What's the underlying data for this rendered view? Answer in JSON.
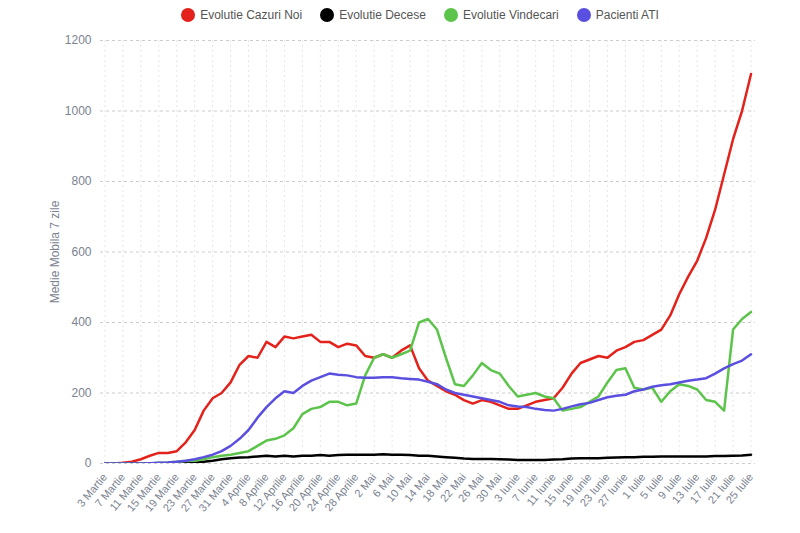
{
  "chart_data": {
    "type": "line",
    "y_label": "Medie Mobila 7 zile",
    "legend": "top",
    "grid": true,
    "ylim": [
      0,
      1200
    ],
    "yticks": [
      0,
      200,
      400,
      600,
      800,
      1000,
      1200
    ],
    "x": [
      "3 Martie",
      null,
      "7 Martie",
      null,
      "11 Martie",
      null,
      "15 Martie",
      null,
      "19 Martie",
      null,
      "23 Martie",
      null,
      "27 Martie",
      null,
      "31 Martie",
      null,
      "4 Aprilie",
      null,
      "8 Aprilie",
      null,
      "12 Aprilie",
      null,
      "16 Aprilie",
      null,
      "20 Aprilie",
      null,
      "24 Aprilie",
      null,
      "28 Aprilie",
      null,
      "2 Mai",
      null,
      "6 Mai",
      null,
      "10 Mai",
      null,
      "14 Mai",
      null,
      "18 Mai",
      null,
      "22 Mai",
      null,
      "26 Mai",
      null,
      "30 Mai",
      null,
      "3 Iunie",
      null,
      "7 Iunie",
      null,
      "11 Iunie",
      null,
      "15 Iunie",
      null,
      "19 Iunie",
      null,
      "23 Iunie",
      null,
      "27 Iunie",
      null,
      "1 Iulie",
      null,
      "5 Iulie",
      null,
      "9 Iulie",
      null,
      "13 Iulie",
      null,
      "17 Iulie",
      null,
      "21 Iulie",
      null,
      "25 Iulie"
    ],
    "series": [
      {
        "name": "Evolutie Cazuri Noi",
        "color": "#e3221c",
        "values": [
          0,
          0,
          2,
          5,
          12,
          22,
          30,
          30,
          35,
          60,
          95,
          150,
          185,
          200,
          230,
          280,
          305,
          300,
          345,
          330,
          360,
          355,
          360,
          365,
          345,
          345,
          330,
          340,
          335,
          305,
          300,
          310,
          300,
          320,
          335,
          270,
          235,
          220,
          205,
          195,
          180,
          170,
          180,
          175,
          165,
          155,
          155,
          165,
          175,
          180,
          185,
          215,
          255,
          285,
          295,
          305,
          300,
          320,
          330,
          345,
          350,
          365,
          380,
          420,
          480,
          530,
          575,
          640,
          720,
          820,
          920,
          1000,
          1105
        ]
      },
      {
        "name": "Evolutie Decese",
        "color": "#000000",
        "values": [
          0,
          0,
          0,
          0,
          0,
          0,
          0,
          0,
          0,
          1,
          2,
          5,
          8,
          12,
          15,
          17,
          18,
          20,
          22,
          20,
          22,
          20,
          22,
          22,
          24,
          22,
          24,
          25,
          25,
          25,
          25,
          26,
          25,
          25,
          24,
          22,
          22,
          20,
          18,
          16,
          14,
          13,
          13,
          13,
          12,
          11,
          10,
          10,
          10,
          10,
          11,
          12,
          14,
          15,
          15,
          15,
          16,
          17,
          18,
          18,
          19,
          19,
          20,
          20,
          20,
          20,
          20,
          20,
          21,
          21,
          22,
          23,
          25
        ]
      },
      {
        "name": "Evolutie Vindecari",
        "color": "#5cc44a",
        "values": [
          0,
          0,
          0,
          0,
          0,
          0,
          2,
          3,
          5,
          7,
          8,
          12,
          18,
          22,
          25,
          30,
          35,
          50,
          65,
          70,
          80,
          100,
          140,
          155,
          160,
          175,
          175,
          165,
          170,
          250,
          300,
          310,
          300,
          310,
          320,
          400,
          410,
          380,
          300,
          225,
          220,
          250,
          285,
          265,
          255,
          220,
          190,
          195,
          200,
          190,
          185,
          150,
          155,
          160,
          175,
          190,
          230,
          265,
          270,
          215,
          210,
          215,
          175,
          205,
          225,
          220,
          210,
          180,
          175,
          150,
          380,
          410,
          430
        ]
      },
      {
        "name": "Pacienti ATI",
        "color": "#5b4fe0",
        "values": [
          0,
          0,
          0,
          0,
          0,
          1,
          2,
          3,
          5,
          8,
          12,
          18,
          25,
          35,
          50,
          70,
          95,
          130,
          160,
          185,
          205,
          200,
          220,
          235,
          245,
          255,
          252,
          250,
          245,
          243,
          243,
          245,
          245,
          242,
          240,
          238,
          232,
          225,
          210,
          200,
          195,
          190,
          185,
          180,
          175,
          165,
          162,
          160,
          155,
          152,
          150,
          155,
          162,
          168,
          172,
          180,
          188,
          192,
          195,
          205,
          210,
          218,
          222,
          225,
          230,
          235,
          238,
          242,
          255,
          270,
          282,
          292,
          310
        ]
      }
    ]
  }
}
